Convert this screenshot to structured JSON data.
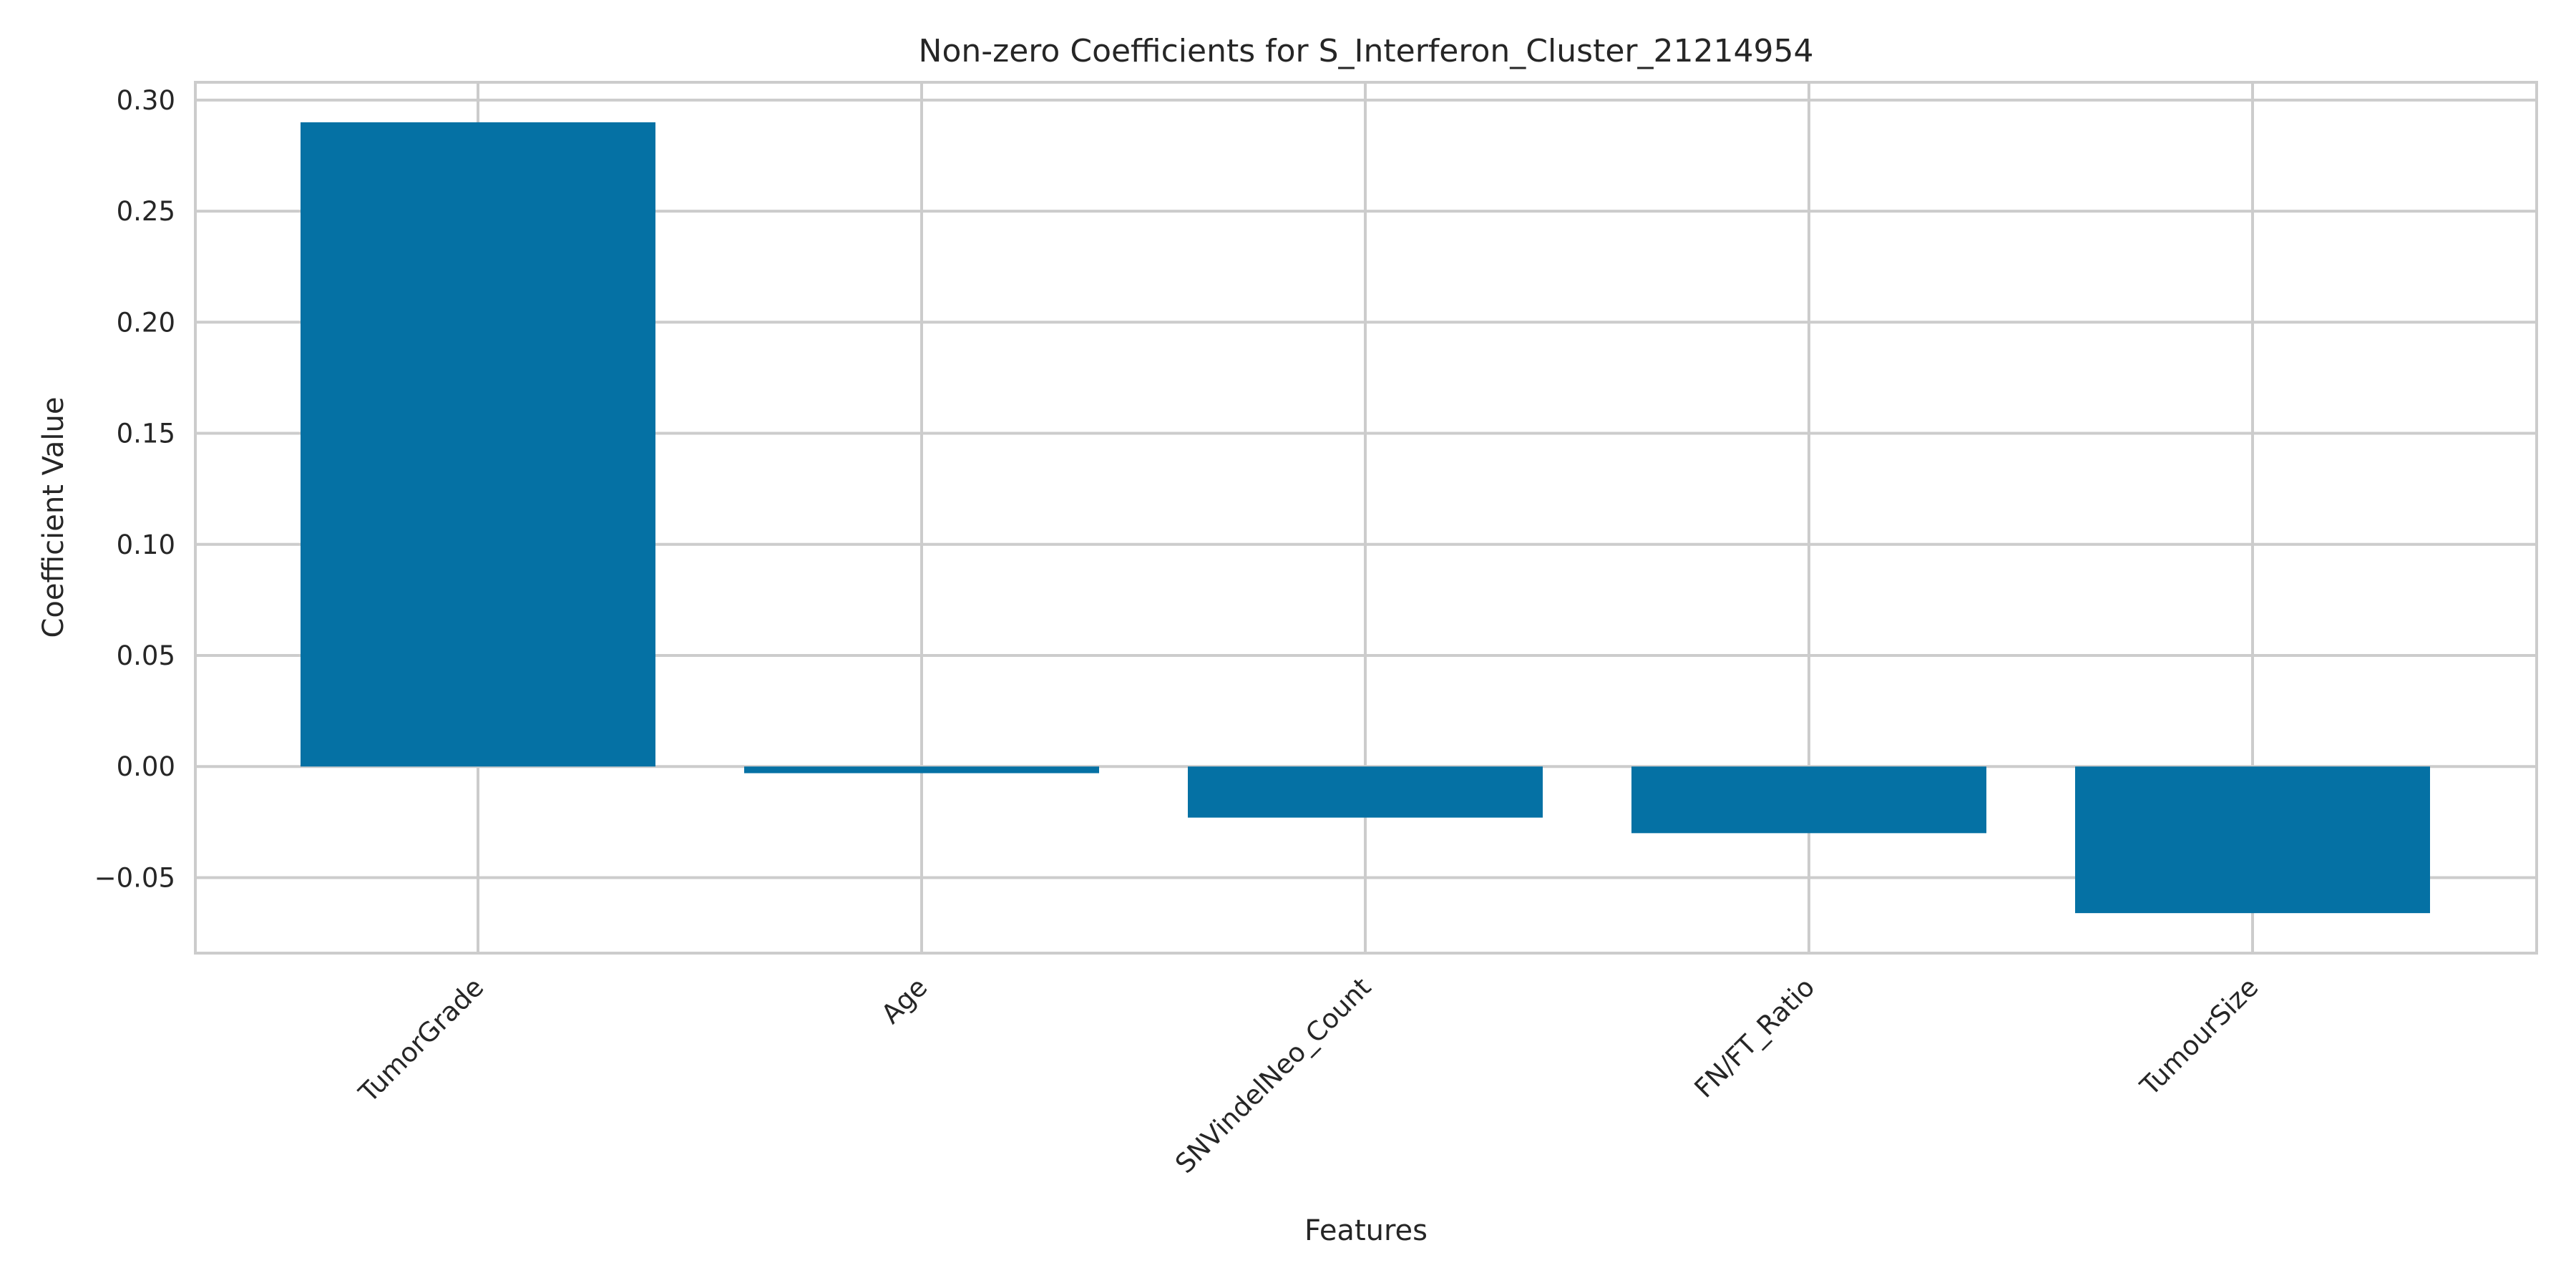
{
  "chart_data": {
    "type": "bar",
    "title": "Non-zero Coefficients for S_Interferon_Cluster_21214954",
    "xlabel": "Features",
    "ylabel": "Coefficient Value",
    "categories": [
      "TumorGrade",
      "Age",
      "SNVindelNeo_Count",
      "FN/FT_Ratio",
      "TumourSize"
    ],
    "values": [
      0.29,
      -0.003,
      -0.023,
      -0.03,
      -0.066
    ],
    "ylim": [
      -0.084,
      0.308
    ],
    "yticks": [
      0.3,
      0.25,
      0.2,
      0.15,
      0.1,
      0.05,
      0.0,
      -0.05
    ],
    "ytick_labels": [
      "0.30",
      "0.25",
      "0.20",
      "0.15",
      "0.10",
      "0.05",
      "0.00",
      "−0.05"
    ],
    "bar_color": "#0571a4",
    "grid": true
  }
}
